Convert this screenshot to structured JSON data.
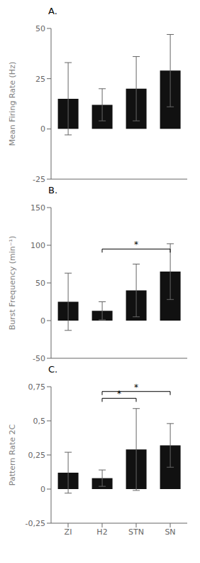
{
  "chart_data": [
    {
      "type": "bar",
      "title": "A.",
      "ylabel": "Mean Firing Rate (Hz)",
      "categories": [
        "ZI",
        "H2",
        "STN",
        "SN"
      ],
      "values": [
        15,
        12,
        20,
        29
      ],
      "errors": [
        18,
        8,
        16,
        18
      ],
      "color": "#111111",
      "ylim": [
        -25,
        50
      ],
      "yticks": [
        -25,
        0,
        25,
        50
      ],
      "tick_labels": "y"
    },
    {
      "type": "bar",
      "title": "B.",
      "ylabel": "Burst Frequency (min⁻¹)",
      "categories": [
        "ZI",
        "H2",
        "STN",
        "SN"
      ],
      "values": [
        25,
        13,
        40,
        65
      ],
      "errors": [
        38,
        12,
        35,
        37
      ],
      "color": "#111111",
      "ylim": [
        -50,
        150
      ],
      "yticks": [
        -50,
        0,
        50,
        100,
        150
      ],
      "tick_labels": "y",
      "annotations": [
        {
          "text": "*",
          "from": "H2",
          "to": "SN",
          "y": 95
        }
      ]
    },
    {
      "type": "bar",
      "title": "C.",
      "ylabel": "Pattern Rate 2C",
      "categories": [
        "ZI",
        "H2",
        "STN",
        "SN"
      ],
      "values": [
        0.12,
        0.08,
        0.29,
        0.32
      ],
      "errors": [
        0.15,
        0.06,
        0.3,
        0.16
      ],
      "color": "#111111",
      "ylim": [
        -0.25,
        0.75
      ],
      "yticks": [
        {
          "value": -0.25,
          "label": "-0,25"
        },
        0,
        {
          "value": 0.25,
          "label": "0,25"
        },
        {
          "value": 0.5,
          "label": "0,5"
        },
        {
          "value": 0.75,
          "label": "0,75"
        }
      ],
      "annotations": [
        {
          "text": "*",
          "from": "H2",
          "to": "STN",
          "y": 0.665
        },
        {
          "text": "*",
          "from": "H2",
          "to": "SN",
          "y": 0.715
        }
      ]
    }
  ]
}
